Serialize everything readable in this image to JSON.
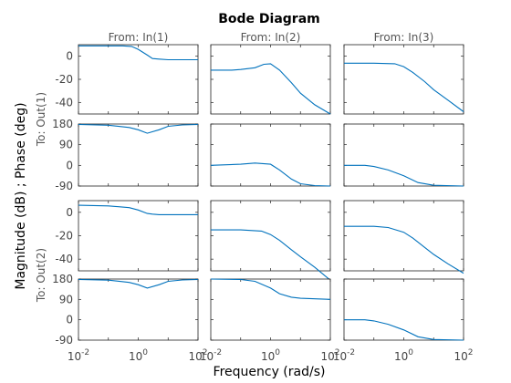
{
  "chart_data": {
    "type": "line",
    "title": "Bode Diagram",
    "xlabel": "Frequency  (rad/s)",
    "ylabel": "Magnitude (dB) ; Phase (deg)",
    "xscale": "log",
    "xlim": [
      0.01,
      100
    ],
    "x_ticks": [
      {
        "base": "10",
        "exp": "-2"
      },
      {
        "base": "10",
        "exp": "0"
      },
      {
        "base": "10",
        "exp": "2"
      }
    ],
    "line_color": "#0072BD",
    "columns": [
      "From: In(1)",
      "From: In(2)",
      "From: In(3)"
    ],
    "row_labels": [
      "To: Out(1)",
      "To: Out(2)"
    ],
    "rows": [
      {
        "kind": "magnitude",
        "output": "To: Out(1)",
        "ylim": [
          -50,
          10
        ],
        "ticks": [
          0,
          -20,
          -40
        ],
        "series": [
          {
            "input": "In(1)",
            "x": [
              0.01,
              0.1,
              0.3,
              0.6,
              1,
              2,
              3,
              5,
              10,
              30,
              100
            ],
            "y": [
              9,
              9,
              9,
              8.5,
              6,
              1,
              -2,
              -2.5,
              -3,
              -3,
              -3
            ]
          },
          {
            "input": "In(2)",
            "x": [
              0.01,
              0.05,
              0.1,
              0.3,
              0.6,
              1,
              2,
              5,
              10,
              30,
              100
            ],
            "y": [
              -12,
              -12,
              -11.5,
              -10,
              -7,
              -6.5,
              -12,
              -23,
              -32,
              -42,
              -50
            ]
          },
          {
            "input": "In(3)",
            "x": [
              0.01,
              0.1,
              0.5,
              1,
              2,
              5,
              10,
              30,
              100
            ],
            "y": [
              -6,
              -6,
              -6.5,
              -9,
              -14,
              -22,
              -29,
              -38,
              -48
            ]
          }
        ]
      },
      {
        "kind": "phase",
        "output": "To: Out(1)",
        "ylim": [
          -90,
          180
        ],
        "ticks": [
          180,
          90,
          0,
          -90
        ],
        "series": [
          {
            "input": "In(1)",
            "x": [
              0.01,
              0.1,
              0.5,
              1,
              2,
              5,
              10,
              30,
              100
            ],
            "y": [
              178,
              175,
              165,
              155,
              140,
              155,
              170,
              176,
              178
            ]
          },
          {
            "input": "In(2)",
            "x": [
              0.01,
              0.1,
              0.3,
              1,
              2,
              5,
              10,
              30,
              100
            ],
            "y": [
              0,
              5,
              10,
              5,
              -20,
              -60,
              -80,
              -88,
              -90
            ]
          },
          {
            "input": "In(3)",
            "x": [
              0.01,
              0.05,
              0.1,
              0.3,
              1,
              3,
              10,
              100
            ],
            "y": [
              0,
              0,
              -5,
              -20,
              -45,
              -75,
              -87,
              -90
            ]
          }
        ]
      },
      {
        "kind": "magnitude",
        "output": "To: Out(2)",
        "ylim": [
          -50,
          10
        ],
        "ticks": [
          0,
          -20,
          -40
        ],
        "series": [
          {
            "input": "In(1)",
            "x": [
              0.01,
              0.1,
              0.5,
              1,
              2,
              3,
              5,
              10,
              100
            ],
            "y": [
              6,
              5.5,
              4,
              2,
              -1,
              -1.5,
              -2,
              -2,
              -2
            ]
          },
          {
            "input": "In(2)",
            "x": [
              0.01,
              0.1,
              0.5,
              1,
              2,
              5,
              10,
              30,
              100
            ],
            "y": [
              -15,
              -15,
              -16,
              -19,
              -24,
              -32,
              -38,
              -47,
              -58
            ]
          },
          {
            "input": "In(3)",
            "x": [
              0.01,
              0.1,
              0.3,
              1,
              2,
              5,
              10,
              30,
              100
            ],
            "y": [
              -12,
              -12,
              -13,
              -17,
              -22,
              -30,
              -36,
              -44,
              -52
            ]
          }
        ]
      },
      {
        "kind": "phase",
        "output": "To: Out(2)",
        "ylim": [
          -90,
          180
        ],
        "ticks": [
          180,
          90,
          0,
          -90
        ],
        "series": [
          {
            "input": "In(1)",
            "x": [
              0.01,
              0.1,
              0.5,
              1,
              2,
              5,
              10,
              30,
              100
            ],
            "y": [
              178,
              175,
              165,
              155,
              140,
              155,
              170,
              176,
              178
            ]
          },
          {
            "input": "In(2)",
            "x": [
              0.01,
              0.1,
              0.3,
              1,
              2,
              5,
              10,
              100
            ],
            "y": [
              180,
              178,
              170,
              140,
              115,
              100,
              95,
              90
            ]
          },
          {
            "input": "In(3)",
            "x": [
              0.01,
              0.05,
              0.1,
              0.3,
              1,
              3,
              10,
              100
            ],
            "y": [
              0,
              0,
              -5,
              -20,
              -45,
              -75,
              -87,
              -90
            ]
          }
        ]
      }
    ]
  }
}
